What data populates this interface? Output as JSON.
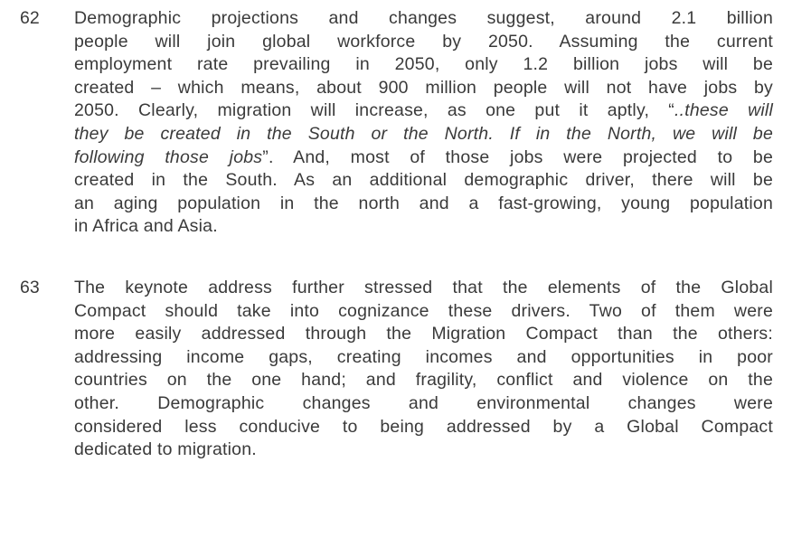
{
  "paragraphs": [
    {
      "number": "62",
      "lines": [
        [
          {
            "text": "Demographic projections and changes suggest, around 2.1 billion",
            "italic": false
          }
        ],
        [
          {
            "text": "people will join global workforce by 2050. Assuming the current",
            "italic": false
          }
        ],
        [
          {
            "text": "employment rate prevailing in 2050, only 1.2 billion jobs will be",
            "italic": false
          }
        ],
        [
          {
            "text": "created – which means, about 900 million people will not have jobs by",
            "italic": false
          }
        ],
        [
          {
            "text": "2050. Clearly, migration will increase, as one put it aptly, “",
            "italic": false
          },
          {
            "text": "..these will",
            "italic": true
          }
        ],
        [
          {
            "text": "they be created in the South or the North. If in the North, we will be",
            "italic": true
          }
        ],
        [
          {
            "text": "following those jobs",
            "italic": true
          },
          {
            "text": "”. And, most of those jobs were projected to be",
            "italic": false
          }
        ],
        [
          {
            "text": "created in the South. As an additional demographic driver, there will be",
            "italic": false
          }
        ],
        [
          {
            "text": "an aging population in the north and a fast-growing, young population",
            "italic": false
          }
        ],
        [
          {
            "text": "in Africa and Asia.",
            "italic": false
          }
        ]
      ]
    },
    {
      "number": "63",
      "lines": [
        [
          {
            "text": "The keynote address further stressed that the elements of the Global",
            "italic": false
          }
        ],
        [
          {
            "text": "Compact should take into cognizance these drivers. Two of them were",
            "italic": false
          }
        ],
        [
          {
            "text": "more easily addressed through the Migration Compact than the others:",
            "italic": false
          }
        ],
        [
          {
            "text": "addressing income gaps, creating incomes and opportunities in poor",
            "italic": false
          }
        ],
        [
          {
            "text": "countries on the one hand; and fragility, conflict and violence on the",
            "italic": false
          }
        ],
        [
          {
            "text": "other. Demographic changes and environmental changes were",
            "italic": false
          }
        ],
        [
          {
            "text": "considered less conducive to being addressed by a Global Compact",
            "italic": false
          }
        ],
        [
          {
            "text": "dedicated to migration.",
            "italic": false
          }
        ]
      ]
    }
  ]
}
